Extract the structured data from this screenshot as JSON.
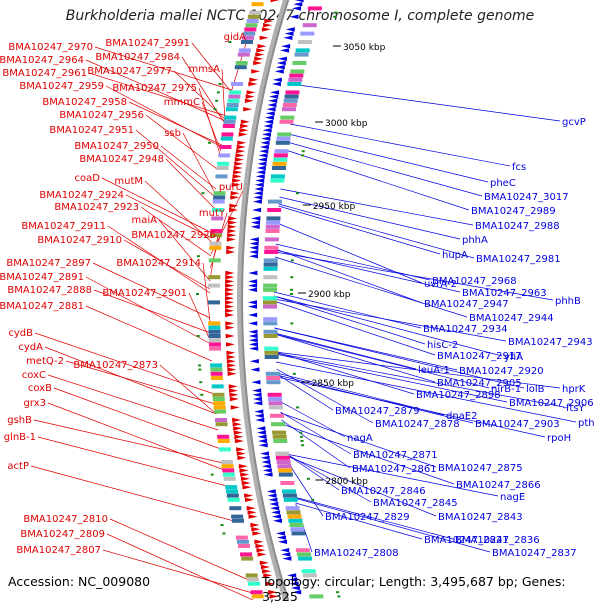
{
  "title": "Burkholderia mallei NCTC 10247 chromosome I, complete genome",
  "footer": {
    "accession": "Accession: NC_009080",
    "summary": "Topology: circular; Length: 3,495,687 bp; Genes: 3,325"
  },
  "colors": {
    "forward": "#e00000",
    "reverse": "#0000e0",
    "backbone": "#8c8c8c",
    "tick": "#1a8c1a"
  },
  "scale_ticks": [
    {
      "label": "3050 kbp"
    },
    {
      "label": "3000 kbp"
    },
    {
      "label": "2950 kbp"
    },
    {
      "label": "2900 kbp"
    },
    {
      "label": "2850 kbp"
    },
    {
      "label": "2800 kbp"
    }
  ],
  "left_labels": [
    "BMA10247_2970",
    "BMA10247_2991",
    "gidA",
    "BMA10247_2964",
    "BMA10247_2984",
    "BMA10247_2961",
    "BMA10247_2977",
    "mmsA",
    "BMA10247_2959",
    "BMA10247_2975",
    "BMA10247_2958",
    "mmmC",
    "BMA10247_2956",
    "ssb",
    "BMA10247_2951",
    "BMA10247_2950",
    "BMA10247_2948",
    "coaD",
    "mutM",
    "purU",
    "BMA10247_2924",
    "BMA10247_2923",
    "mutY",
    "maiA",
    "BMA10247_2911",
    "BMA10247_2926",
    "BMA10247_2910",
    "BMA10247_2897",
    "BMA10247_2914",
    "BMA10247_2891",
    "BMA10247_2888",
    "BMA10247_2901",
    "BMA10247_2881",
    "cydB",
    "cydA",
    "metQ-2",
    "BMA10247_2873",
    "coxC",
    "coxB",
    "grx3",
    "gshB",
    "glnB-1",
    "actP",
    "BMA10247_2810",
    "BMA10247_2809",
    "BMA10247_2807"
  ],
  "right_labels": [
    "gcvP",
    "fcs",
    "pheC",
    "BMA10247_3017",
    "BMA10247_2989",
    "BMA10247_2988",
    "phhA",
    "hupA",
    "BMA10247_2981",
    "uvrA-2",
    "BMA10247_2968",
    "BMA10247_2963",
    "phhB",
    "BMA10247_2947",
    "BMA10247_2944",
    "BMA10247_2934",
    "BMA10247_2943",
    "hisC-2",
    "BMA10247_2917",
    "yfiA",
    "leuA-1",
    "BMA10247_2920",
    "BMA10247_2905",
    "nirB-1",
    "lolB",
    "hprK",
    "BMA10247_2898",
    "BMA10247_2906",
    "ftsY",
    "pth",
    "BMA10247_2879",
    "dnaE2",
    "BMA10247_2903",
    "BMA10247_2878",
    "rpoH",
    "nagA",
    "BMA10247_2871",
    "BMA10247_2861",
    "BMA10247_2875",
    "BMA10247_2866",
    "BMA10247_2846",
    "nagE",
    "BMA10247_2845",
    "BMA10247_2829",
    "BMA10247_2843",
    "BMA10247_2821",
    "BMA10247_2836",
    "BMA10247_2808",
    "BMA10247_2837"
  ]
}
